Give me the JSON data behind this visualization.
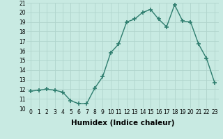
{
  "x": [
    0,
    1,
    2,
    3,
    4,
    5,
    6,
    7,
    8,
    9,
    10,
    11,
    12,
    13,
    14,
    15,
    16,
    17,
    18,
    19,
    20,
    21,
    22,
    23
  ],
  "y": [
    11.8,
    11.9,
    12.0,
    11.9,
    11.7,
    10.8,
    10.5,
    10.5,
    12.1,
    13.3,
    15.8,
    16.7,
    19.0,
    19.3,
    20.0,
    20.3,
    19.3,
    18.5,
    20.8,
    19.1,
    19.0,
    16.7,
    15.2,
    12.7
  ],
  "line_color": "#2e7d6e",
  "marker": "+",
  "marker_size": 4,
  "marker_lw": 1.2,
  "bg_color": "#c8eae2",
  "grid_color": "#b0d4cc",
  "xlabel": "Humidex (Indice chaleur)",
  "ylim": [
    10,
    21
  ],
  "xlim_min": -0.5,
  "xlim_max": 23.5,
  "yticks": [
    10,
    11,
    12,
    13,
    14,
    15,
    16,
    17,
    18,
    19,
    20,
    21
  ],
  "xticks": [
    0,
    1,
    2,
    3,
    4,
    5,
    6,
    7,
    8,
    9,
    10,
    11,
    12,
    13,
    14,
    15,
    16,
    17,
    18,
    19,
    20,
    21,
    22,
    23
  ],
  "tick_fontsize": 5.5,
  "xlabel_fontsize": 7.5,
  "line_width": 1.0
}
